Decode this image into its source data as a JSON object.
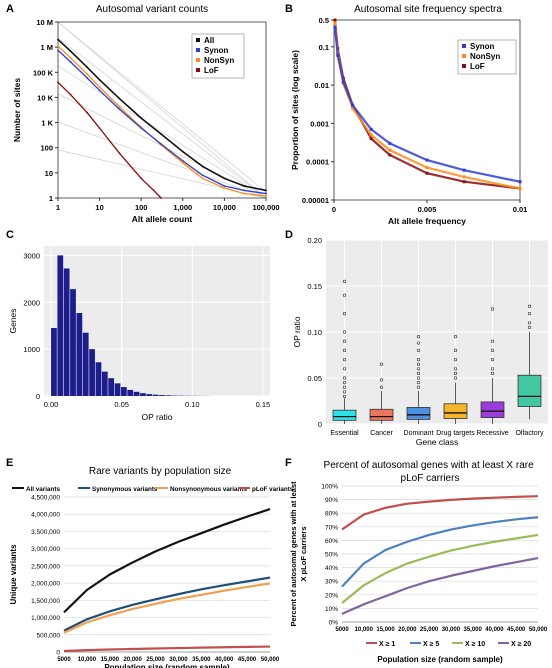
{
  "figure": {
    "panel_letters": [
      "A",
      "B",
      "C",
      "D",
      "E",
      "F"
    ]
  },
  "chart_data": [
    {
      "panel": "A",
      "type": "line",
      "title": "Autosomal variant counts",
      "xlabel": "Alt allele count",
      "ylabel": "Number of sites",
      "x_scale": "log",
      "y_scale": "log",
      "xlim": [
        1,
        100000
      ],
      "ylim": [
        1,
        10000000
      ],
      "x_ticks": [
        1,
        10,
        100,
        1000,
        10000,
        100000
      ],
      "x_tick_labels": [
        "1",
        "10",
        "100",
        "1,000",
        "10,000",
        "100,000"
      ],
      "y_ticks": [
        1,
        10,
        100,
        1000,
        10000,
        100000,
        1000000,
        10000000
      ],
      "y_tick_labels": [
        "1",
        "10",
        "100",
        "1 K",
        "10 K",
        "100 K",
        "1 M",
        "10 M"
      ],
      "legend_position": "top-right",
      "reference_lines": "diagonal gray guide lines",
      "series": [
        {
          "name": "All",
          "color": "#111111",
          "x": [
            1,
            2,
            5,
            10,
            30,
            100,
            300,
            1000,
            3000,
            10000,
            30000,
            100000
          ],
          "y": [
            2000000,
            700000,
            160000,
            50000,
            9000,
            1500,
            350,
            70,
            18,
            6,
            3,
            2
          ]
        },
        {
          "name": "Synon",
          "color": "#2a3fd6",
          "x": [
            1,
            2,
            5,
            10,
            30,
            100,
            300,
            1000,
            3000,
            10000,
            30000,
            100000
          ],
          "y": [
            750000,
            260000,
            60000,
            19000,
            3400,
            600,
            140,
            30,
            8,
            3,
            2,
            1.5
          ]
        },
        {
          "name": "NonSyn",
          "color": "#ff8c1a",
          "x": [
            1,
            2,
            5,
            10,
            30,
            100,
            300,
            1000,
            3000,
            10000,
            30000,
            100000
          ],
          "y": [
            1100000,
            380000,
            85000,
            26000,
            4200,
            650,
            130,
            25,
            6,
            2.5,
            1.5,
            1.2
          ]
        },
        {
          "name": "LoF",
          "color": "#8b0a0a",
          "x": [
            1,
            2,
            5,
            10,
            30,
            100,
            200,
            300
          ],
          "y": [
            40000,
            13000,
            2500,
            600,
            60,
            6,
            2,
            1
          ]
        }
      ]
    },
    {
      "panel": "B",
      "type": "scatter",
      "title": "Autosomal site frequency spectra",
      "xlabel": "Alt allele frequency",
      "ylabel": "Proportion of sites (log scale)",
      "x_scale": "linear",
      "y_scale": "log",
      "xlim": [
        0,
        0.01
      ],
      "ylim": [
        1e-05,
        0.5
      ],
      "x_ticks": [
        0,
        0.005,
        0.01
      ],
      "x_tick_labels": [
        "0",
        "0.005",
        "0.01"
      ],
      "y_ticks": [
        1e-05,
        0.0001,
        0.001,
        0.01,
        0.1,
        0.5
      ],
      "y_tick_labels": [
        "0.00001",
        "0.0001",
        "0.001",
        "0.01",
        "0.1",
        "0.5"
      ],
      "legend_position": "top-right",
      "series": [
        {
          "name": "Synon",
          "color": "#2a3fd6",
          "x": [
            5e-05,
            0.0002,
            0.0005,
            0.001,
            0.002,
            0.003,
            0.005,
            0.007,
            0.01
          ],
          "y": [
            0.32,
            0.06,
            0.012,
            0.003,
            0.0007,
            0.0003,
            0.00011,
            6e-05,
            3e-05
          ]
        },
        {
          "name": "NonSyn",
          "color": "#ff8c1a",
          "x": [
            5e-05,
            0.0002,
            0.0005,
            0.001,
            0.002,
            0.003,
            0.005,
            0.007,
            0.01
          ],
          "y": [
            0.42,
            0.07,
            0.011,
            0.0025,
            0.0005,
            0.0002,
            7e-05,
            4e-05,
            2e-05
          ]
        },
        {
          "name": "LoF",
          "color": "#8b0a0a",
          "x": [
            5e-05,
            0.0002,
            0.0005,
            0.001,
            0.002,
            0.003,
            0.005,
            0.007,
            0.01
          ],
          "y": [
            0.5,
            0.09,
            0.015,
            0.003,
            0.0004,
            0.00015,
            5e-05,
            3e-05,
            2e-05
          ]
        }
      ]
    },
    {
      "panel": "C",
      "type": "bar",
      "title": "",
      "xlabel": "OP ratio",
      "ylabel": "Genes",
      "xlim": [
        -0.005,
        0.155
      ],
      "ylim": [
        0,
        3200
      ],
      "x_ticks": [
        0,
        0.05,
        0.1,
        0.15
      ],
      "x_tick_labels": [
        "0.00",
        "0.05",
        "0.10",
        "0.15"
      ],
      "y_ticks": [
        0,
        1000,
        2000,
        3000
      ],
      "y_tick_labels": [
        "0",
        "1000",
        "2000",
        "3000"
      ],
      "bar_color": "#1d1d8c",
      "grid": true,
      "bin_width": 0.0045,
      "bins_start": [
        0.0,
        0.0045,
        0.009,
        0.0135,
        0.018,
        0.0225,
        0.027,
        0.0315,
        0.036,
        0.0405,
        0.045,
        0.0495,
        0.054,
        0.0585,
        0.063,
        0.0675,
        0.072,
        0.0765,
        0.081,
        0.0855,
        0.09,
        0.0945,
        0.099,
        0.1035,
        0.108
      ],
      "values": [
        1450,
        3000,
        2720,
        2280,
        1770,
        1350,
        1000,
        720,
        520,
        380,
        270,
        190,
        130,
        90,
        60,
        40,
        28,
        20,
        14,
        10,
        7,
        5,
        4,
        3,
        2
      ]
    },
    {
      "panel": "D",
      "type": "box",
      "title": "",
      "xlabel": "Gene class",
      "ylabel": "OP ratio",
      "ylim": [
        0,
        0.2
      ],
      "y_ticks": [
        0,
        0.05,
        0.1,
        0.15,
        0.2
      ],
      "y_tick_labels": [
        "0",
        "0.05",
        "0.10",
        "0.15",
        "0.20"
      ],
      "grid": true,
      "categories": [
        "Essential",
        "Cancer",
        "Dominant",
        "Drug targets",
        "Recessive",
        "Olfactory"
      ],
      "colors": [
        "#2ee0e8",
        "#ef7560",
        "#4f8fdf",
        "#f5b52a",
        "#9b3ddb",
        "#43c7a0"
      ],
      "boxes": [
        {
          "whisker_low": 0.0,
          "q1": 0.004,
          "median": 0.008,
          "q3": 0.015,
          "whisker_high": 0.028,
          "outliers": [
            0.03,
            0.035,
            0.04,
            0.045,
            0.05,
            0.06,
            0.07,
            0.08,
            0.09,
            0.1,
            0.12,
            0.14,
            0.155
          ]
        },
        {
          "whisker_low": 0.0,
          "q1": 0.004,
          "median": 0.008,
          "q3": 0.016,
          "whisker_high": 0.036,
          "outliers": [
            0.04,
            0.048,
            0.065
          ]
        },
        {
          "whisker_low": 0.0,
          "q1": 0.005,
          "median": 0.01,
          "q3": 0.018,
          "whisker_high": 0.036,
          "outliers": [
            0.04,
            0.045,
            0.05,
            0.055,
            0.06,
            0.065,
            0.07,
            0.08,
            0.088,
            0.095
          ]
        },
        {
          "whisker_low": 0.0,
          "q1": 0.006,
          "median": 0.012,
          "q3": 0.022,
          "whisker_high": 0.045,
          "outliers": [
            0.05,
            0.055,
            0.06,
            0.07,
            0.08,
            0.095
          ]
        },
        {
          "whisker_low": 0.0,
          "q1": 0.007,
          "median": 0.014,
          "q3": 0.024,
          "whisker_high": 0.05,
          "outliers": [
            0.055,
            0.06,
            0.07,
            0.08,
            0.09,
            0.125
          ]
        },
        {
          "whisker_low": 0.005,
          "q1": 0.019,
          "median": 0.03,
          "q3": 0.053,
          "whisker_high": 0.1,
          "outliers": [
            0.105,
            0.11,
            0.12,
            0.128
          ]
        }
      ]
    },
    {
      "panel": "E",
      "type": "line",
      "title": "Rare variants by population size",
      "xlabel": "Population size (random sample)",
      "ylabel": "Unique variants",
      "xlim": [
        5000,
        50000
      ],
      "ylim": [
        0,
        4500000
      ],
      "x_ticks": [
        5000,
        10000,
        15000,
        20000,
        25000,
        30000,
        35000,
        40000,
        45000,
        50000
      ],
      "x_tick_labels": [
        "5000",
        "10,000",
        "15,000",
        "20,000",
        "25,000",
        "30,000",
        "35,000",
        "40,000",
        "45,000",
        "50,000"
      ],
      "y_ticks": [
        0,
        500000,
        1000000,
        1500000,
        2000000,
        2500000,
        3000000,
        3500000,
        4000000,
        4500000
      ],
      "y_tick_labels": [
        "0",
        "500,000",
        "1,000,000",
        "1,500,000",
        "2,000,000",
        "2,500,000",
        "3,000,000",
        "3,500,000",
        "4,000,000",
        "4,500,000"
      ],
      "grid": true,
      "legend_position": "top",
      "x": [
        5000,
        10000,
        15000,
        20000,
        25000,
        30000,
        35000,
        40000,
        45000,
        50000
      ],
      "series": [
        {
          "name": "All variants",
          "color": "#111111",
          "values": [
            1150000,
            1800000,
            2250000,
            2600000,
            2920000,
            3200000,
            3450000,
            3700000,
            3930000,
            4150000
          ]
        },
        {
          "name": "Synonymous variants",
          "color": "#1f4e79",
          "values": [
            620000,
            950000,
            1180000,
            1370000,
            1530000,
            1680000,
            1820000,
            1940000,
            2050000,
            2160000
          ]
        },
        {
          "name": "Nonsynonymous variants",
          "color": "#f0a050",
          "values": [
            560000,
            860000,
            1070000,
            1250000,
            1400000,
            1540000,
            1660000,
            1780000,
            1890000,
            1990000
          ]
        },
        {
          "name": "pLoF variants",
          "color": "#c0504d",
          "values": [
            30000,
            55000,
            72000,
            88000,
            102000,
            115000,
            127000,
            138000,
            148000,
            158000
          ]
        }
      ]
    },
    {
      "panel": "F",
      "type": "line",
      "title": "Percent of autosomal genes with at least X rare pLoF carriers",
      "xlabel": "Population size (random sample)",
      "ylabel": "Percent of autosomal genes with at least X pLoF carriers",
      "xlim": [
        5000,
        50000
      ],
      "ylim": [
        0,
        100
      ],
      "x_ticks": [
        5000,
        10000,
        15000,
        20000,
        25000,
        30000,
        35000,
        40000,
        45000,
        50000
      ],
      "x_tick_labels": [
        "5000",
        "10,000",
        "15,000",
        "20,000",
        "25,000",
        "30,000",
        "35,000",
        "40,000",
        "45,000",
        "50,000"
      ],
      "y_ticks": [
        0,
        10,
        20,
        30,
        40,
        50,
        60,
        70,
        80,
        90,
        100
      ],
      "y_tick_labels": [
        "0%",
        "10%",
        "20%",
        "30%",
        "40%",
        "50%",
        "60%",
        "70%",
        "80%",
        "90%",
        "100%"
      ],
      "grid": true,
      "legend_position": "bottom",
      "x": [
        5000,
        10000,
        15000,
        20000,
        25000,
        30000,
        35000,
        40000,
        45000,
        50000
      ],
      "series": [
        {
          "name": "X ≥ 1",
          "color": "#c0504d",
          "values": [
            68,
            79,
            84,
            87,
            88.5,
            89.8,
            90.7,
            91.4,
            92,
            92.5
          ]
        },
        {
          "name": "X ≥ 5",
          "color": "#4f81bd",
          "values": [
            26,
            43,
            53,
            59,
            64,
            68,
            71,
            73.5,
            75.5,
            77
          ]
        },
        {
          "name": "X ≥ 10",
          "color": "#9bbb59",
          "values": [
            14,
            27,
            36,
            43,
            48,
            52.5,
            56,
            59,
            61.5,
            64
          ]
        },
        {
          "name": "X ≥ 20",
          "color": "#8064a2",
          "values": [
            6,
            13,
            19,
            25,
            30,
            34,
            37.5,
            41,
            44,
            47
          ]
        }
      ]
    }
  ]
}
